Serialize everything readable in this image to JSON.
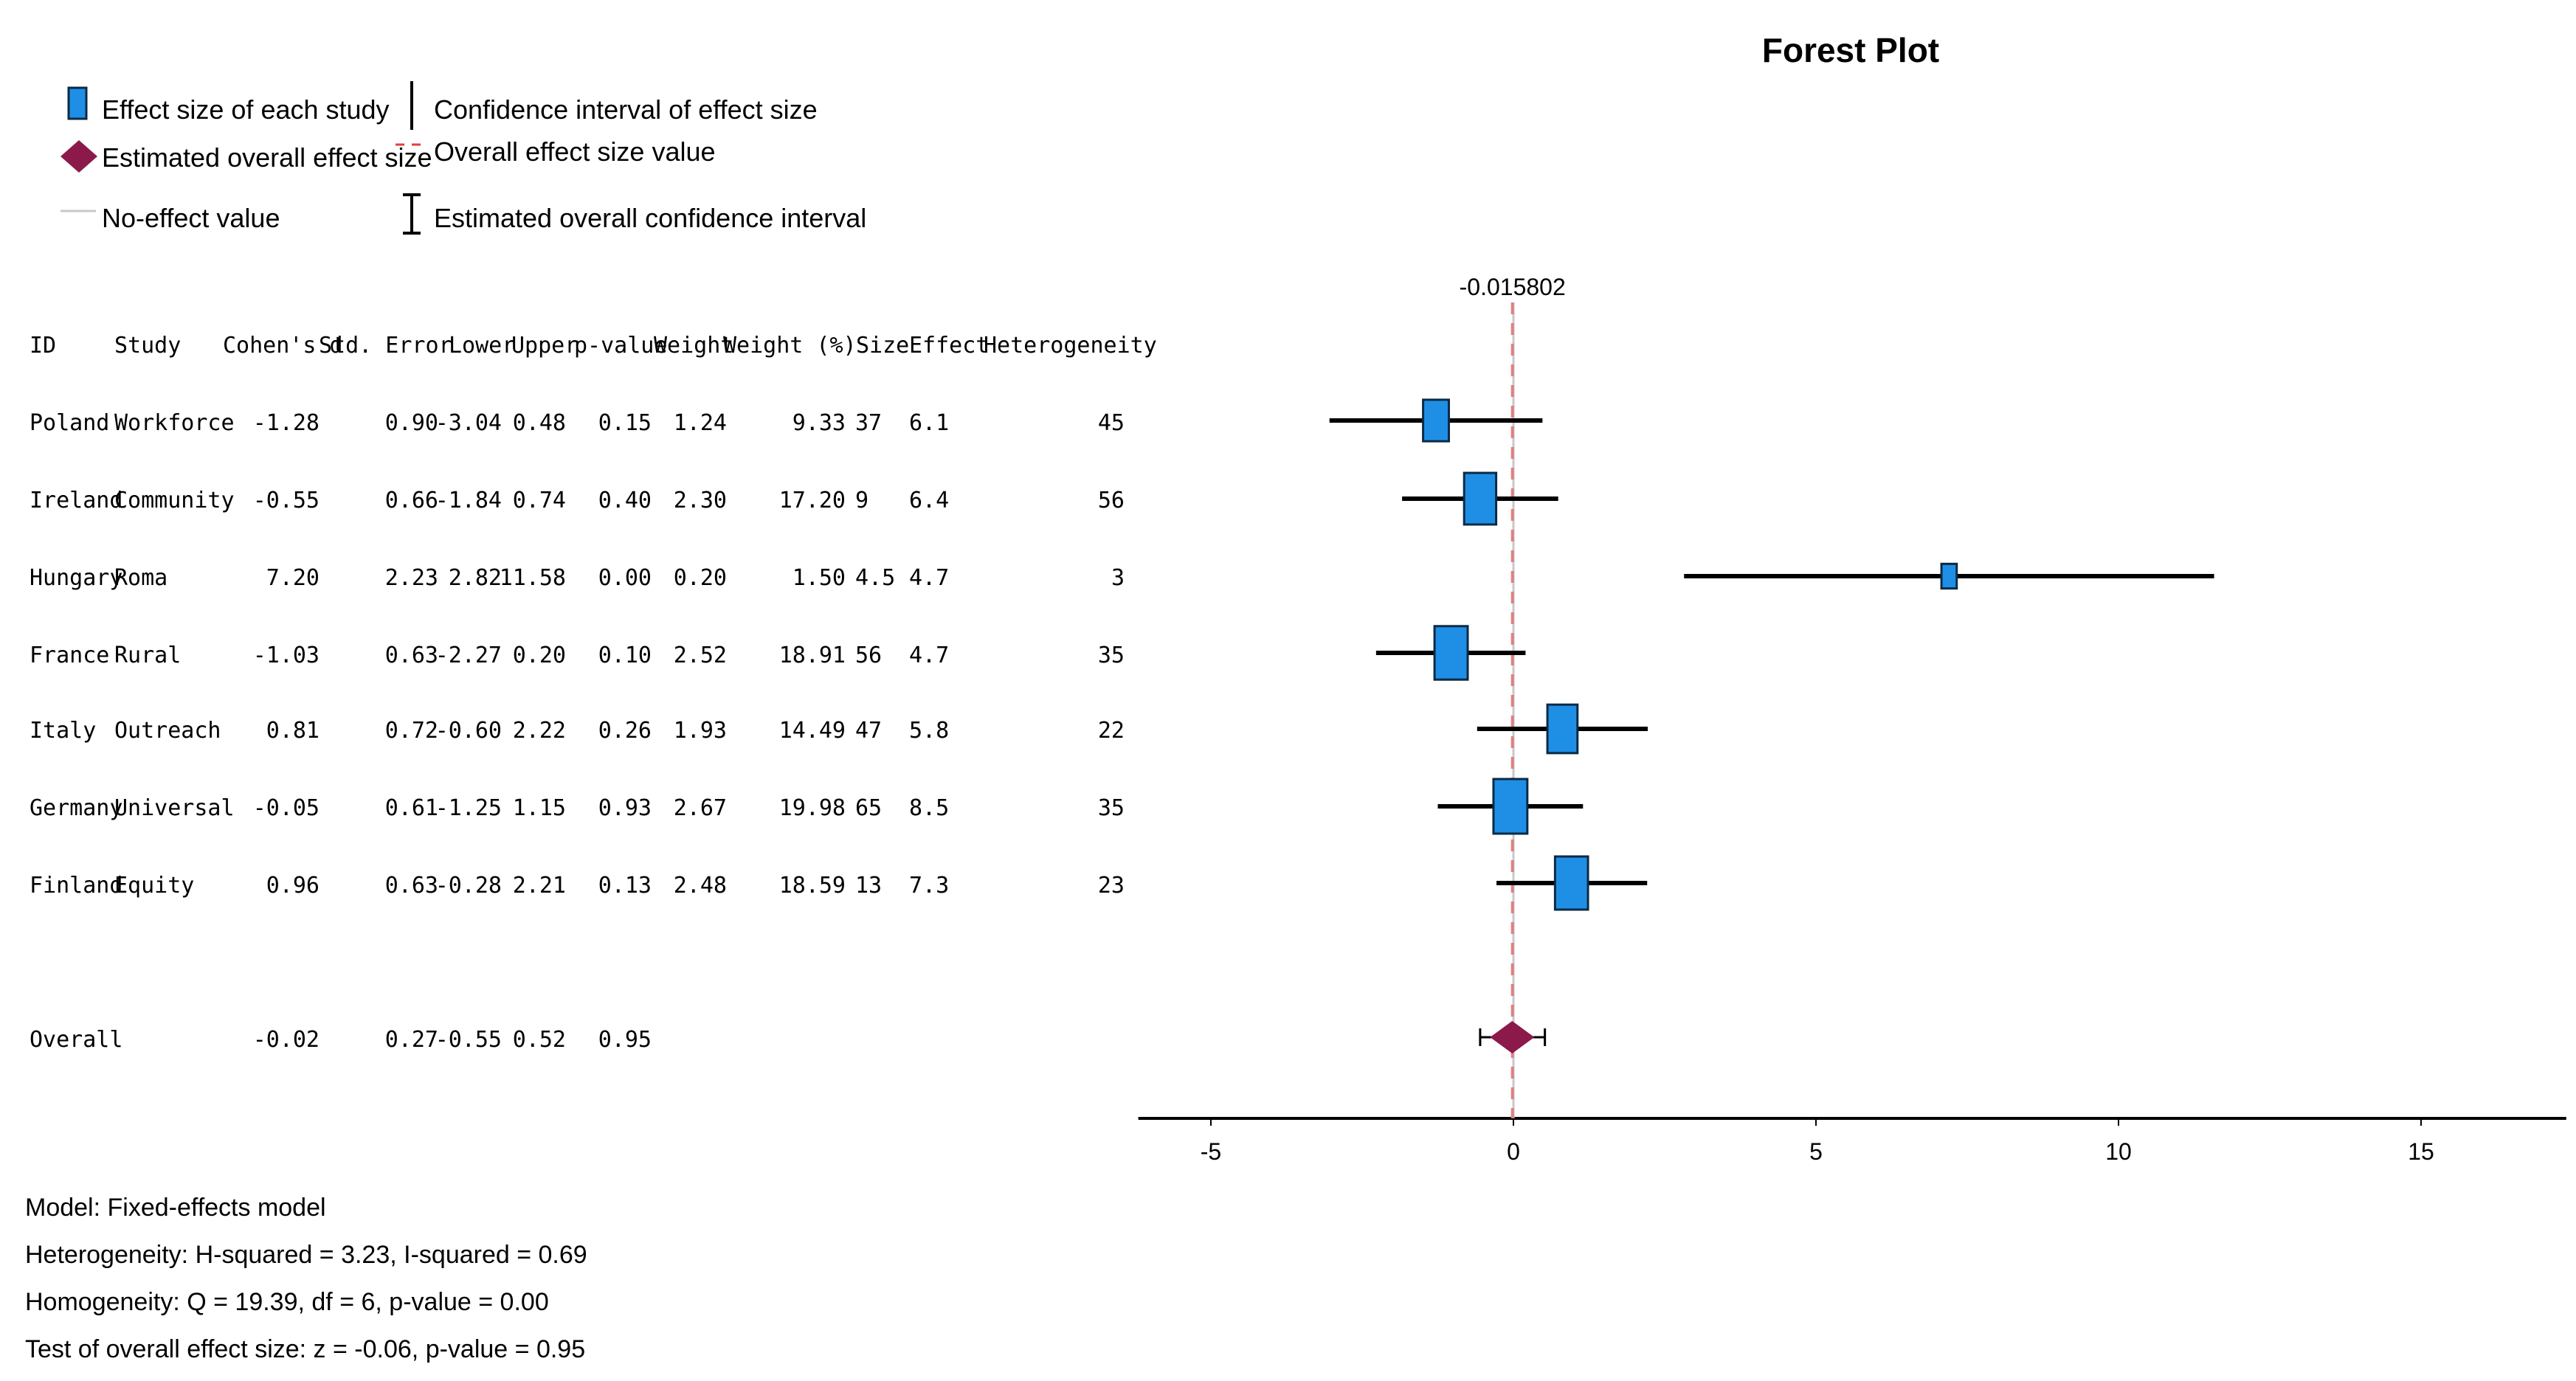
{
  "chart_data": {
    "type": "forest",
    "title": "Forest Plot",
    "legend": {
      "study_effect": "Effect size of each study",
      "ci": "Confidence interval of effect size",
      "overall_effect": "Estimated overall effect size",
      "overall_value": "Overall effect size value",
      "no_effect": "No-effect value",
      "overall_ci": "Estimated overall confidence interval"
    },
    "overall_line_label": "-0.015802",
    "overall_value": -0.015802,
    "no_effect_value": 0,
    "x_ticks": [
      "-5",
      "0",
      "5",
      "10",
      "15"
    ],
    "xlim": [
      -6.2,
      17.4
    ],
    "columns": [
      "ID",
      "Study",
      "Cohen's d",
      "Std. Error",
      "Lower",
      "Upper",
      "p-value",
      "Weight",
      "Weight (%)",
      "Size",
      "Effect",
      "Heterogeneity"
    ],
    "rows": [
      {
        "id": "Poland",
        "study": "Workforce",
        "d": "-1.28",
        "se": "0.90",
        "lower": "-3.04",
        "upper": "0.48",
        "p": "0.15",
        "weight": "1.24",
        "weight_pct": "9.33",
        "size": "37",
        "effect": "6.1",
        "het": "45",
        "dv": -1.28,
        "lv": -3.04,
        "uv": 0.48,
        "wv": 9.33
      },
      {
        "id": "Ireland",
        "study": "Community",
        "d": "-0.55",
        "se": "0.66",
        "lower": "-1.84",
        "upper": "0.74",
        "p": "0.40",
        "weight": "2.30",
        "weight_pct": "17.20",
        "size": "9",
        "effect": "6.4",
        "het": "56",
        "dv": -0.55,
        "lv": -1.84,
        "uv": 0.74,
        "wv": 17.2
      },
      {
        "id": "Hungary",
        "study": "Roma",
        "d": "7.20",
        "se": "2.23",
        "lower": "2.82",
        "upper": "11.58",
        "p": "0.00",
        "weight": "0.20",
        "weight_pct": "1.50",
        "size": "4.5",
        "effect": "4.7",
        "het": "3",
        "dv": 7.2,
        "lv": 2.82,
        "uv": 11.58,
        "wv": 1.5
      },
      {
        "id": "France",
        "study": "Rural",
        "d": "-1.03",
        "se": "0.63",
        "lower": "-2.27",
        "upper": "0.20",
        "p": "0.10",
        "weight": "2.52",
        "weight_pct": "18.91",
        "size": "56",
        "effect": "4.7",
        "het": "35",
        "dv": -1.03,
        "lv": -2.27,
        "uv": 0.2,
        "wv": 18.91
      },
      {
        "id": "Italy",
        "study": "Outreach",
        "d": "0.81",
        "se": "0.72",
        "lower": "-0.60",
        "upper": "2.22",
        "p": "0.26",
        "weight": "1.93",
        "weight_pct": "14.49",
        "size": "47",
        "effect": "5.8",
        "het": "22",
        "dv": 0.81,
        "lv": -0.6,
        "uv": 2.22,
        "wv": 14.49
      },
      {
        "id": "Germany",
        "study": "Universal",
        "d": "-0.05",
        "se": "0.61",
        "lower": "-1.25",
        "upper": "1.15",
        "p": "0.93",
        "weight": "2.67",
        "weight_pct": "19.98",
        "size": "65",
        "effect": "8.5",
        "het": "35",
        "dv": -0.05,
        "lv": -1.25,
        "uv": 1.15,
        "wv": 19.98
      },
      {
        "id": "Finland",
        "study": "Equity",
        "d": "0.96",
        "se": "0.63",
        "lower": "-0.28",
        "upper": "2.21",
        "p": "0.13",
        "weight": "2.48",
        "weight_pct": "18.59",
        "size": "13",
        "effect": "7.3",
        "het": "23",
        "dv": 0.96,
        "lv": -0.28,
        "uv": 2.21,
        "wv": 18.59
      }
    ],
    "overall": {
      "id": "Overall",
      "d": "-0.02",
      "se": "0.27",
      "lower": "-0.55",
      "upper": "0.52",
      "p": "0.95",
      "dv": -0.02,
      "lv": -0.55,
      "uv": 0.52
    },
    "footnotes": [
      "Model: Fixed-effects model",
      "Heterogeneity: H-squared = 3.23, I-squared = 0.69",
      "Homogeneity: Q = 19.39, df = 6, p-value = 0.00",
      "Test of overall effect size: z = -0.06, p-value = 0.95"
    ],
    "colors": {
      "box": "#1f8fe6",
      "box_edge": "#0b2a44",
      "diamond": "#8b1a4a",
      "overall_line": "#e08080",
      "no_effect_line": "#c8c8c8",
      "axis": "#000000"
    }
  }
}
